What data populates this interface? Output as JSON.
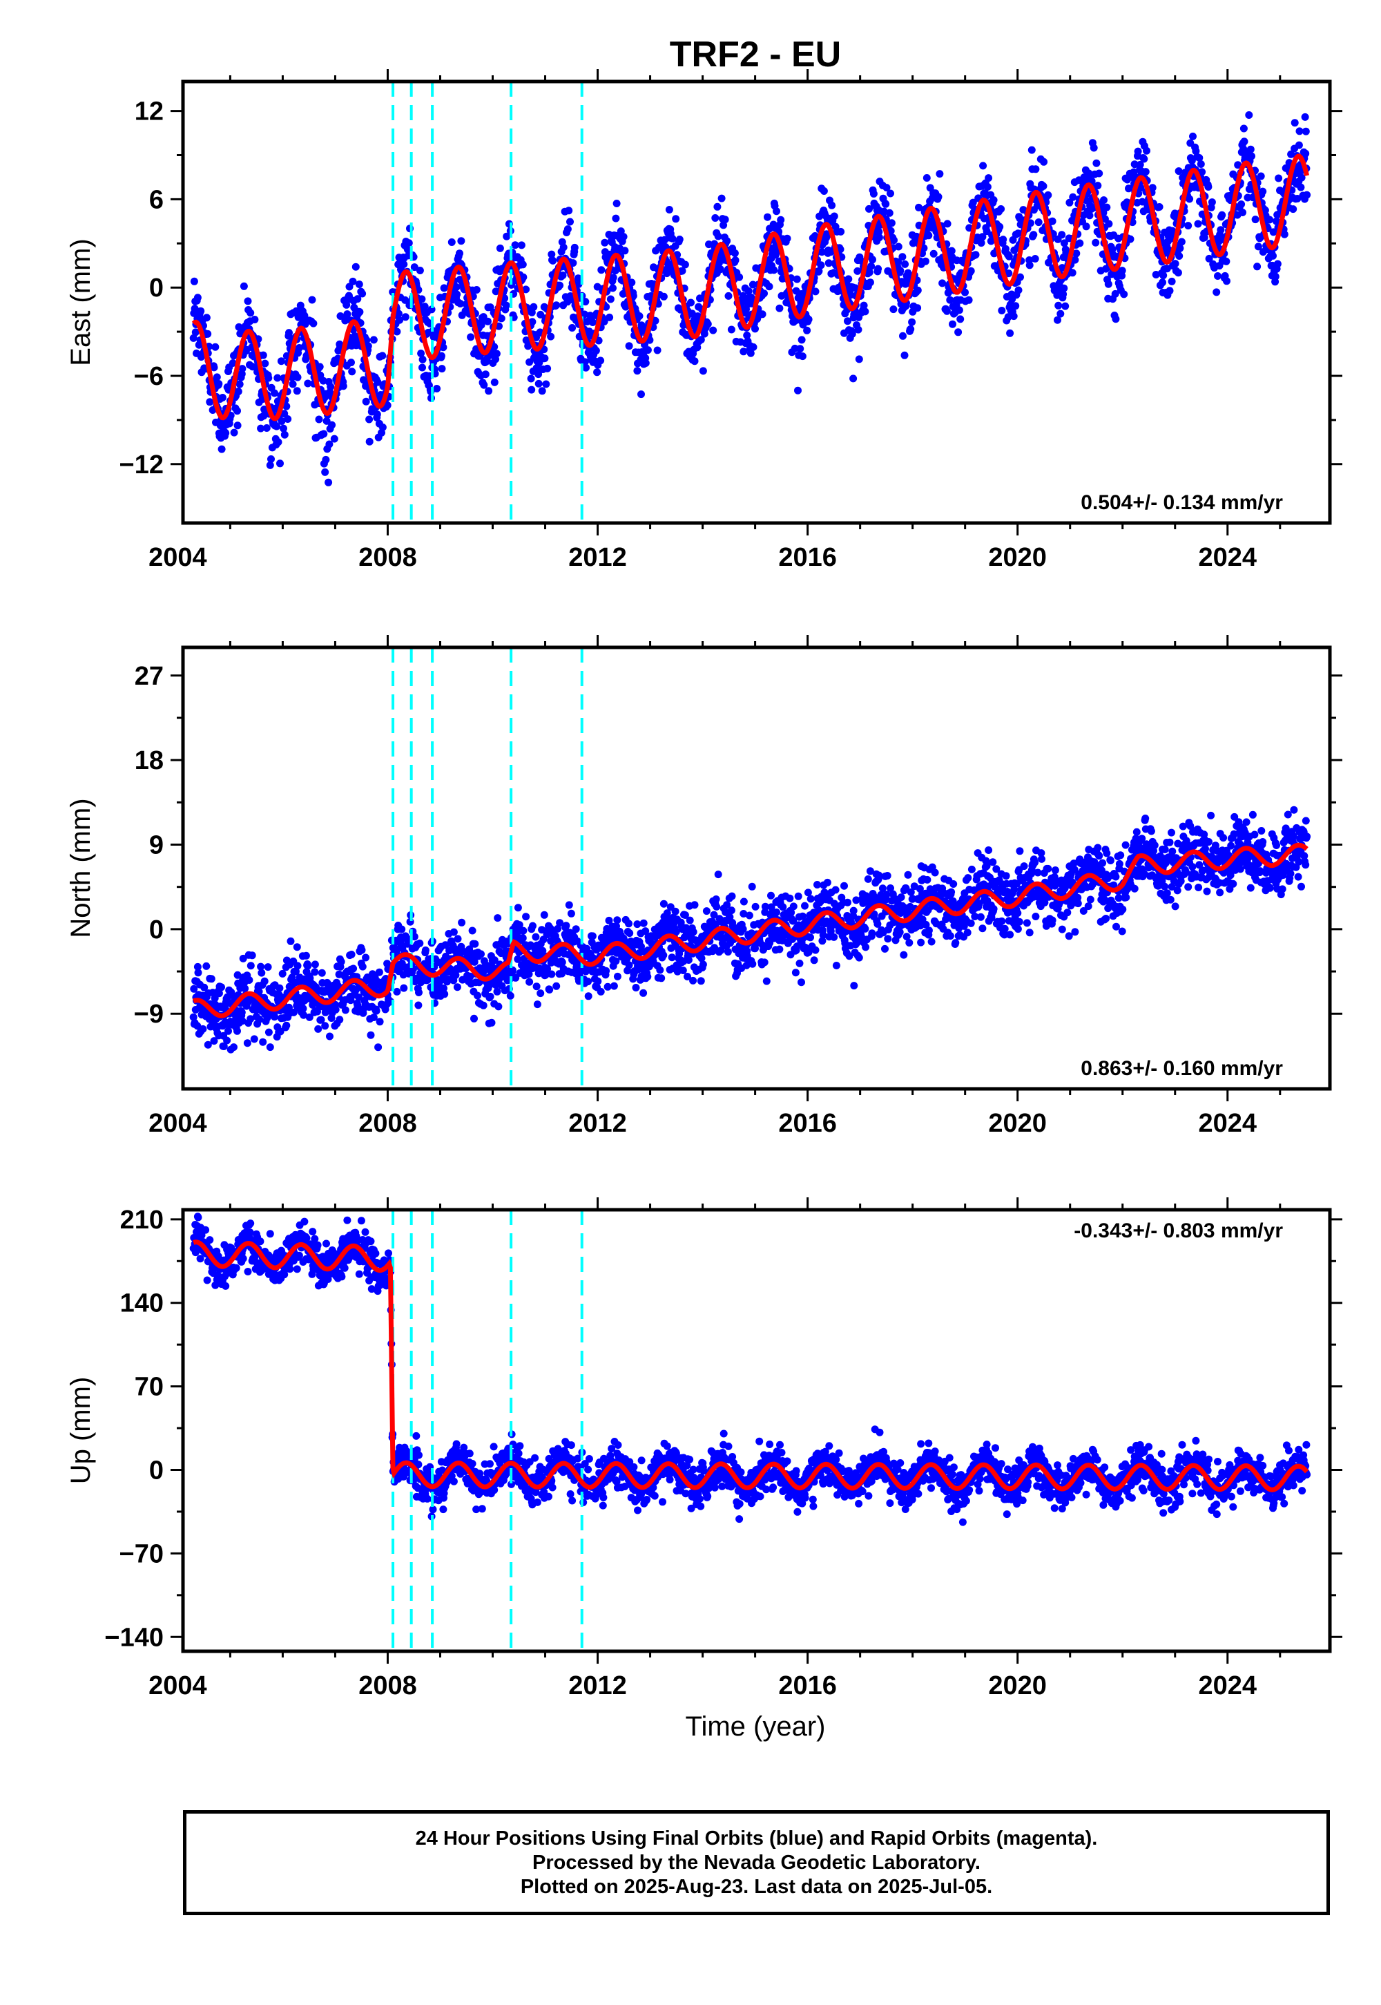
{
  "figure": {
    "title": "TRF2 - EU",
    "xlabel": "Time (year)"
  },
  "colors": {
    "data_points": "#0000ff",
    "model_line": "#ff0000",
    "event_lines": "#00ffff",
    "frame": "#000000"
  },
  "chart_data": [
    {
      "type": "scatter",
      "component": "East",
      "ylabel": "East (mm)",
      "xlim": [
        2004.1,
        2025.95
      ],
      "ylim": [
        -16,
        14
      ],
      "xticks": [
        2004,
        2008,
        2012,
        2016,
        2020,
        2024
      ],
      "yticks": [
        -12,
        -6,
        0,
        6,
        12
      ],
      "rate_label": "0.504+/- 0.134 mm/yr",
      "rate_position": "bottom-right",
      "event_lines_x": [
        2008.1,
        2008.45,
        2008.85,
        2010.35,
        2011.7
      ],
      "data_start": 2004.3,
      "data_end": 2025.51,
      "series": [
        {
          "x": [
            2004.3,
            2005.0,
            2006.0,
            2007.0,
            2008.0,
            2008.1,
            2010.0,
            2012.0,
            2014.0,
            2016.0,
            2018.0,
            2020.0,
            2022.0,
            2024.0,
            2025.5
          ],
          "y": [
            -5.3,
            -6.0,
            -5.9,
            -5.5,
            -5.0,
            -2.0,
            -1.4,
            -0.9,
            -0.3,
            1.1,
            2.2,
            3.3,
            4.3,
            5.3,
            6.0
          ]
        }
      ],
      "seasonal_amplitude": 3.0,
      "scatter_spread": 1.5
    },
    {
      "type": "scatter",
      "component": "North",
      "ylabel": "North (mm)",
      "xlim": [
        2004.1,
        2025.95
      ],
      "ylim": [
        -17,
        30
      ],
      "xticks": [
        2004,
        2008,
        2012,
        2016,
        2020,
        2024
      ],
      "yticks": [
        -9,
        0,
        9,
        18,
        27
      ],
      "rate_label": "0.863+/- 0.160 mm/yr",
      "rate_position": "bottom-right",
      "event_lines_x": [
        2008.1,
        2008.45,
        2008.85,
        2010.35,
        2011.7
      ],
      "data_start": 2004.3,
      "data_end": 2025.51,
      "series": [
        {
          "x": [
            2004.3,
            2008.0,
            2008.1,
            2010.3,
            2010.4,
            2012.0,
            2014.0,
            2016.0,
            2018.0,
            2020.0,
            2022.0,
            2022.3,
            2024.0,
            2025.5
          ],
          "y": [
            -8.6,
            -6.0,
            -3.6,
            -4.5,
            -2.3,
            -2.8,
            -1.2,
            0.5,
            2.0,
            3.5,
            5.3,
            6.8,
            7.5,
            8.0
          ]
        }
      ],
      "seasonal_amplitude": 1.0,
      "scatter_spread": 1.8
    },
    {
      "type": "scatter",
      "component": "Up",
      "ylabel": "Up (mm)",
      "xlim": [
        2004.1,
        2025.95
      ],
      "ylim": [
        -152,
        218
      ],
      "xticks": [
        2004,
        2008,
        2012,
        2016,
        2020,
        2024
      ],
      "yticks": [
        -140,
        -70,
        0,
        70,
        140,
        210
      ],
      "rate_label": "-0.343+/- 0.803 mm/yr",
      "rate_position": "top-right",
      "event_lines_x": [
        2008.1,
        2008.45,
        2008.85,
        2010.35,
        2011.7
      ],
      "data_start": 2004.3,
      "data_end": 2025.51,
      "series": [
        {
          "x": [
            2004.3,
            2008.05,
            2008.1,
            2012.0,
            2016.0,
            2020.0,
            2024.0,
            2025.5
          ],
          "y": [
            181,
            177,
            -4,
            -4.6,
            -5.2,
            -5.8,
            -6.4,
            -6.9
          ]
        }
      ],
      "seasonal_amplitude": 10.0,
      "scatter_spread": 9.0
    }
  ],
  "footer": {
    "line1": "24 Hour Positions Using Final Orbits (blue) and Rapid Orbits (magenta).",
    "line2": "Processed by the Nevada Geodetic Laboratory.",
    "line3": "Plotted on 2025-Aug-23. Last data on 2025-Jul-05."
  }
}
